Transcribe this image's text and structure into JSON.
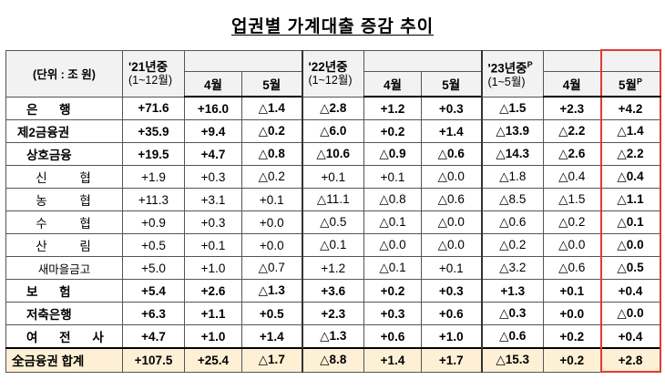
{
  "title": "업권별 가계대출 증감 추이",
  "unit_label": "(단위 : 조 원)",
  "header": {
    "y21": "'21년중",
    "y21_sub": "(1~12월)",
    "y22": "'22년중",
    "y22_sub": "(1~12월)",
    "y23": "'23년중",
    "y23_sup": "P",
    "y23_sub": "(1~5월)",
    "apr": "4월",
    "may": "5월",
    "may_p": "5월",
    "may_p_sup": "P"
  },
  "rows": [
    {
      "label": "은 행",
      "values": [
        "+71.6",
        "+16.0",
        "△1.4",
        "△2.8",
        "+1.2",
        "+0.3",
        "△1.5",
        "+2.3",
        "+4.2"
      ]
    },
    {
      "label": "제2금융권",
      "values": [
        "+35.9",
        "+9.4",
        "△0.2",
        "△6.0",
        "+0.2",
        "+1.4",
        "△13.9",
        "△2.2",
        "△1.4"
      ]
    },
    {
      "label": "상호금융",
      "values": [
        "+19.5",
        "+4.7",
        "△0.8",
        "△10.6",
        "△0.9",
        "△0.6",
        "△14.3",
        "△2.6",
        "△2.2"
      ]
    },
    {
      "label": "신 협",
      "values": [
        "+1.9",
        "+0.3",
        "△0.2",
        "+0.1",
        "+0.1",
        "△0.0",
        "△1.8",
        "△0.4",
        "△0.4"
      ]
    },
    {
      "label": "농 협",
      "values": [
        "+11.3",
        "+3.1",
        "+0.1",
        "△11.1",
        "△0.8",
        "△0.6",
        "△8.5",
        "△1.5",
        "△1.1"
      ]
    },
    {
      "label": "수 협",
      "values": [
        "+0.9",
        "+0.3",
        "+0.0",
        "△0.5",
        "△0.1",
        "△0.0",
        "△0.6",
        "△0.2",
        "△0.1"
      ]
    },
    {
      "label": "산 림",
      "values": [
        "+0.5",
        "+0.1",
        "+0.0",
        "△0.1",
        "△0.0",
        "△0.0",
        "△0.2",
        "△0.0",
        "△0.0"
      ]
    },
    {
      "label": "새마을금고",
      "values": [
        "+5.0",
        "+1.0",
        "△0.7",
        "+1.2",
        "△0.1",
        "+0.1",
        "△3.2",
        "△0.6",
        "△0.5"
      ]
    },
    {
      "label": "보 험",
      "values": [
        "+5.4",
        "+2.6",
        "△1.3",
        "+3.6",
        "+0.2",
        "+0.3",
        "+1.3",
        "+0.1",
        "+0.4"
      ]
    },
    {
      "label": "저축은행",
      "values": [
        "+6.3",
        "+1.1",
        "+0.5",
        "+2.3",
        "+0.3",
        "+0.6",
        "△0.3",
        "+0.0",
        "△0.0"
      ]
    },
    {
      "label": "여 전 사",
      "values": [
        "+4.7",
        "+1.0",
        "+1.4",
        "△1.3",
        "+0.6",
        "+1.0",
        "△0.6",
        "+0.2",
        "+0.4"
      ]
    }
  ],
  "total": {
    "label": "全금융권 합계",
    "values": [
      "+107.5",
      "+25.4",
      "△1.7",
      "△8.8",
      "+1.4",
      "+1.7",
      "△15.3",
      "+0.2",
      "+2.8"
    ]
  },
  "colors": {
    "highlight_border": "#e53935",
    "total_bg": "#fdf0d5"
  }
}
